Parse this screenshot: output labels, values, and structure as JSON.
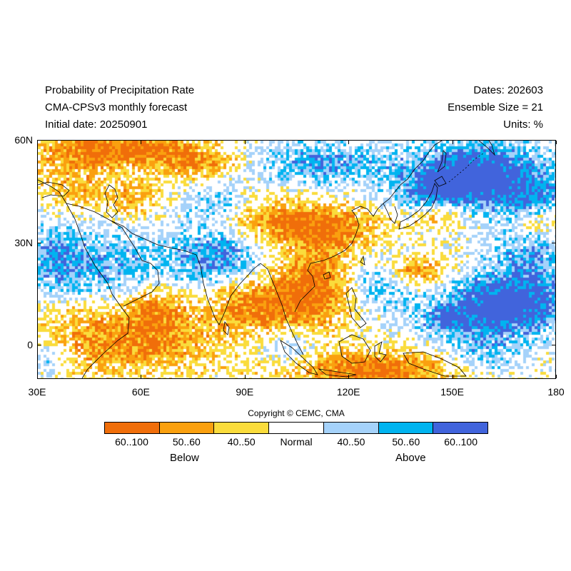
{
  "header": {
    "title": "Probability of Precipitation Rate",
    "model": "CMA-CPSv3 monthly forecast",
    "initial_date": "Initial date: 20250901",
    "dates": "Dates: 202603",
    "ensemble": "Ensemble Size = 21",
    "units": "Units: %"
  },
  "map": {
    "lon_range": [
      30,
      180
    ],
    "lat_range": [
      -10,
      60
    ],
    "lat_ticks": [
      "60N",
      "30N",
      "0"
    ],
    "lon_ticks": [
      "30E",
      "60E",
      "90E",
      "120E",
      "150E",
      "180"
    ]
  },
  "copyright": "Copyright © CEMC, CMA",
  "legend": {
    "items": [
      {
        "label": "60..100",
        "color": "#f06e0a"
      },
      {
        "label": "50..60",
        "color": "#faa00f"
      },
      {
        "label": "40..50",
        "color": "#fadc3c"
      },
      {
        "label": "Normal",
        "color": "#ffffff"
      },
      {
        "label": "40..50",
        "color": "#a5d2fa"
      },
      {
        "label": "50..60",
        "color": "#00b4f0"
      },
      {
        "label": "60..100",
        "color": "#4164dc"
      }
    ],
    "below_label": "Below",
    "above_label": "Above"
  }
}
